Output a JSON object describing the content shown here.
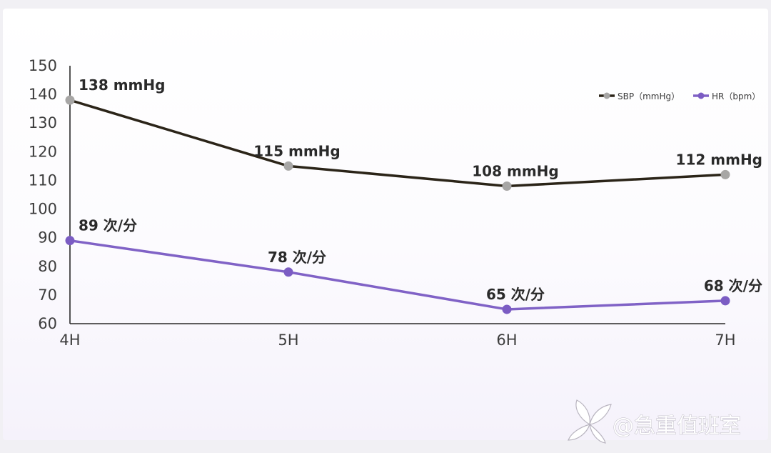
{
  "chart_data": {
    "type": "line",
    "title": "",
    "xlabel": "",
    "ylabel": "",
    "categories": [
      "4H",
      "5H",
      "6H",
      "7H"
    ],
    "ylim": [
      60,
      150
    ],
    "yticks": [
      60,
      70,
      80,
      90,
      100,
      110,
      120,
      130,
      140,
      150
    ],
    "grid": false,
    "legend_position": "top-right",
    "series": [
      {
        "name": "SBP（mmHg）",
        "values": [
          138,
          115,
          108,
          112
        ],
        "labels": [
          "138 mmHg",
          "115 mmHg",
          "108 mmHg",
          "112 mmHg"
        ],
        "line_color": "#2b2418",
        "marker_color": "#a7a6a5"
      },
      {
        "name": "HR（bpm）",
        "values": [
          89,
          78,
          65,
          68
        ],
        "labels": [
          "89 次/分",
          "78 次/分",
          "65 次/分",
          "68 次/分"
        ],
        "line_color": "#8062c6",
        "marker_color": "#7b5cc3"
      }
    ]
  },
  "watermark": {
    "text": "@急重值班室",
    "icon": "leaf-logo-icon"
  }
}
